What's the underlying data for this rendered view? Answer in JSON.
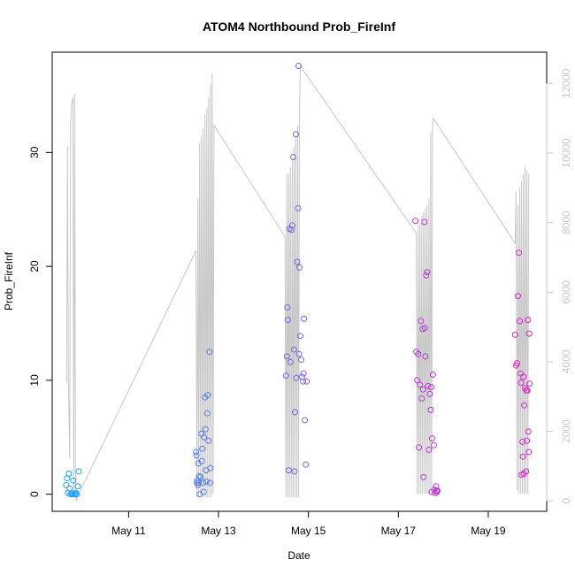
{
  "chart_data": {
    "type": "scatter",
    "title": "ATOM4 Northbound Prob_FireInf",
    "xlabel": "Date",
    "ylabel": "Prob_FireInf",
    "x_ticks": [
      "May 11",
      "May 13",
      "May 15",
      "May 17",
      "May 19"
    ],
    "x_tick_days": [
      11,
      13,
      15,
      17,
      19
    ],
    "xlim": [
      9.3,
      20.3
    ],
    "ylim": [
      -1.5,
      38.8
    ],
    "y_ticks": [
      0,
      10,
      20,
      30
    ],
    "y2lim": [
      -300,
      12900
    ],
    "y2_ticks": [
      0,
      2000,
      4000,
      6000,
      8000,
      10000,
      12000
    ],
    "grid": false,
    "secondary_series": {
      "color": "#c8c8c8",
      "x": [
        9.62,
        9.64,
        9.66,
        9.69,
        9.71,
        9.73,
        9.76,
        9.78,
        9.8,
        9.82,
        9.84,
        9.86,
        9.88,
        9.9,
        9.93,
        12.5,
        12.52,
        12.54,
        12.56,
        12.58,
        12.6,
        12.62,
        12.64,
        12.66,
        12.68,
        12.7,
        12.72,
        12.74,
        12.76,
        12.78,
        12.8,
        12.82,
        12.84,
        12.86,
        12.88,
        12.9,
        14.48,
        14.5,
        14.52,
        14.54,
        14.56,
        14.58,
        14.6,
        14.62,
        14.64,
        14.66,
        14.68,
        14.7,
        14.72,
        14.74,
        14.76,
        14.78,
        14.8,
        14.82,
        17.4,
        17.42,
        17.44,
        17.46,
        17.48,
        17.5,
        17.52,
        17.54,
        17.56,
        17.58,
        17.6,
        17.62,
        17.64,
        17.66,
        17.68,
        17.7,
        17.72,
        17.74,
        17.76,
        17.78,
        19.6,
        19.62,
        19.64,
        19.66,
        19.68,
        19.7,
        19.72,
        19.74,
        19.76,
        19.78,
        19.8,
        19.82,
        19.84,
        19.86,
        19.88,
        19.9
      ],
      "y": [
        3400,
        10200,
        3400,
        1200,
        10800,
        11400,
        11600,
        200,
        11700,
        200,
        0,
        100,
        200,
        250,
        300,
        7200,
        100,
        8700,
        100,
        10300,
        150,
        10500,
        100,
        10700,
        100,
        11100,
        100,
        11300,
        100,
        11600,
        100,
        12000,
        100,
        12300,
        200,
        10800,
        7600,
        100,
        9400,
        100,
        9400,
        100,
        9600,
        100,
        9800,
        100,
        10200,
        100,
        10500,
        100,
        10800,
        100,
        11000,
        12500,
        7700,
        200,
        7900,
        200,
        8000,
        200,
        8200,
        200,
        8300,
        200,
        8400,
        200,
        8500,
        200,
        8700,
        200,
        10600,
        200,
        10800,
        11000,
        7400,
        8900,
        300,
        8500,
        200,
        9000,
        200,
        9200,
        200,
        9400,
        200,
        9600,
        200,
        9500,
        200,
        9400
      ]
    },
    "series": [
      {
        "color_range": [
          "#1aa3ff",
          "#e61ecc"
        ],
        "points": [
          [
            9.61,
            0.8
          ],
          [
            9.63,
            1.4
          ],
          [
            9.65,
            0.1
          ],
          [
            9.67,
            1.8
          ],
          [
            9.69,
            0.5
          ],
          [
            9.71,
            0
          ],
          [
            9.73,
            0.1
          ],
          [
            9.75,
            0
          ],
          [
            9.77,
            1.2
          ],
          [
            9.79,
            0
          ],
          [
            9.81,
            0
          ],
          [
            9.83,
            0.1
          ],
          [
            9.85,
            0
          ],
          [
            9.87,
            0.7
          ],
          [
            9.89,
            2.0
          ],
          [
            12.5,
            3.7
          ],
          [
            12.51,
            3.4
          ],
          [
            12.52,
            1.0
          ],
          [
            12.53,
            1.2
          ],
          [
            12.54,
            0.8
          ],
          [
            12.55,
            2.7
          ],
          [
            12.56,
            1.0
          ],
          [
            12.57,
            1.6
          ],
          [
            12.58,
            0
          ],
          [
            12.6,
            1.5
          ],
          [
            12.62,
            5.3
          ],
          [
            12.63,
            2.9
          ],
          [
            12.64,
            4.0
          ],
          [
            12.66,
            1.0
          ],
          [
            12.67,
            0.2
          ],
          [
            12.68,
            5.0
          ],
          [
            12.7,
            8.5
          ],
          [
            12.71,
            5.7
          ],
          [
            12.72,
            2.1
          ],
          [
            12.73,
            1.1
          ],
          [
            12.75,
            7.1
          ],
          [
            12.76,
            8.7
          ],
          [
            12.78,
            4.7
          ],
          [
            12.8,
            12.5
          ],
          [
            12.81,
            1.0
          ],
          [
            12.82,
            2.3
          ],
          [
            14.5,
            10.4
          ],
          [
            14.52,
            12.1
          ],
          [
            14.53,
            16.4
          ],
          [
            14.54,
            15.3
          ],
          [
            14.56,
            2.1
          ],
          [
            14.58,
            23.3
          ],
          [
            14.6,
            11.6
          ],
          [
            14.62,
            23.2
          ],
          [
            14.64,
            23.6
          ],
          [
            14.66,
            29.6
          ],
          [
            14.68,
            12.7
          ],
          [
            14.69,
            2.0
          ],
          [
            14.7,
            7.2
          ],
          [
            14.72,
            31.6
          ],
          [
            14.73,
            10.2
          ],
          [
            14.75,
            20.4
          ],
          [
            14.77,
            25.1
          ],
          [
            14.78,
            37.6
          ],
          [
            14.79,
            12.3
          ],
          [
            14.8,
            19.9
          ],
          [
            14.82,
            13.9
          ],
          [
            14.84,
            11.8
          ],
          [
            14.86,
            10.3
          ],
          [
            14.88,
            9.9
          ],
          [
            14.89,
            10.6
          ],
          [
            14.9,
            15.4
          ],
          [
            14.92,
            6.5
          ],
          [
            14.94,
            2.6
          ],
          [
            14.96,
            9.9
          ],
          [
            17.38,
            24.0
          ],
          [
            17.4,
            12.5
          ],
          [
            17.42,
            10.0
          ],
          [
            17.44,
            12.3
          ],
          [
            17.46,
            4.1
          ],
          [
            17.48,
            9.6
          ],
          [
            17.5,
            15.2
          ],
          [
            17.52,
            8.4
          ],
          [
            17.54,
            14.5
          ],
          [
            17.55,
            9.2
          ],
          [
            17.56,
            1.5
          ],
          [
            17.58,
            23.9
          ],
          [
            17.59,
            14.6
          ],
          [
            17.6,
            12.1
          ],
          [
            17.62,
            19.2
          ],
          [
            17.64,
            19.5
          ],
          [
            17.66,
            9.5
          ],
          [
            17.68,
            3.9
          ],
          [
            17.7,
            8.8
          ],
          [
            17.72,
            7.4
          ],
          [
            17.73,
            9.4
          ],
          [
            17.74,
            0.2
          ],
          [
            17.75,
            4.9
          ],
          [
            17.77,
            10.5
          ],
          [
            17.79,
            4.3
          ],
          [
            17.8,
            0.4
          ],
          [
            17.82,
            0.1
          ],
          [
            17.84,
            0.7
          ],
          [
            17.85,
            0.3
          ],
          [
            17.86,
            0.2
          ],
          [
            17.87,
            0.3
          ],
          [
            19.6,
            14.0
          ],
          [
            19.62,
            11.3
          ],
          [
            19.64,
            11.5
          ],
          [
            19.66,
            17.4
          ],
          [
            19.68,
            21.2
          ],
          [
            19.7,
            15.2
          ],
          [
            19.72,
            10.6
          ],
          [
            19.73,
            9.8
          ],
          [
            19.74,
            1.7
          ],
          [
            19.76,
            4.6
          ],
          [
            19.77,
            3.3
          ],
          [
            19.78,
            10.3
          ],
          [
            19.79,
            1.8
          ],
          [
            19.8,
            7.8
          ],
          [
            19.82,
            9.3
          ],
          [
            19.84,
            2.0
          ],
          [
            19.85,
            9.1
          ],
          [
            19.86,
            4.7
          ],
          [
            19.87,
            9.1
          ],
          [
            19.88,
            15.3
          ],
          [
            19.89,
            5.5
          ],
          [
            19.9,
            3.7
          ],
          [
            19.91,
            14.1
          ],
          [
            19.92,
            9.7
          ]
        ]
      }
    ]
  }
}
